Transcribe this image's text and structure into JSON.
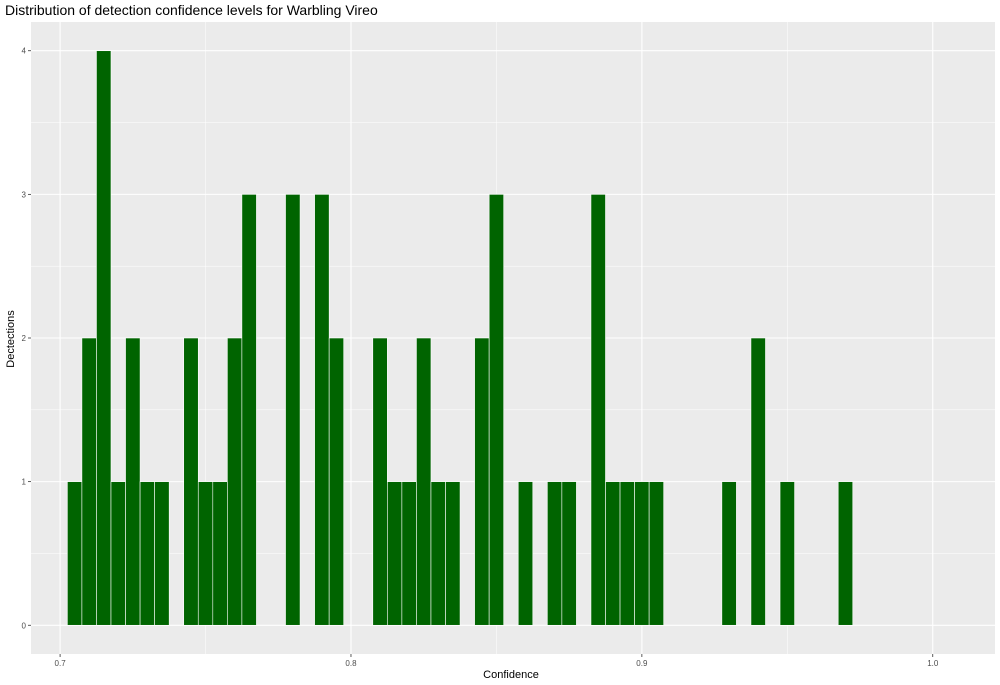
{
  "chart_data": {
    "type": "bar",
    "title": "Distribution of detection confidence levels for Warbling Vireo",
    "xlabel": "Confidence",
    "ylabel": "Dectections",
    "xlim": [
      0.69,
      1.0214
    ],
    "ylim": [
      -0.2,
      4.2
    ],
    "xticks": [
      0.7,
      0.8,
      0.9,
      1.0
    ],
    "xtick_labels": [
      "0.7",
      "0.8",
      "0.9",
      "1.0"
    ],
    "yticks": [
      0,
      1,
      2,
      3,
      4
    ],
    "ytick_labels": [
      "0",
      "1",
      "2",
      "3",
      "4"
    ],
    "bin_width": 0.005,
    "bar_color": "#006400",
    "bar_outline": "#ffffff",
    "panel_background": "#ebebeb",
    "grid": true,
    "x": [
      0.705,
      0.71,
      0.715,
      0.72,
      0.725,
      0.73,
      0.735,
      0.745,
      0.75,
      0.755,
      0.76,
      0.765,
      0.78,
      0.79,
      0.795,
      0.81,
      0.815,
      0.82,
      0.825,
      0.83,
      0.835,
      0.845,
      0.85,
      0.86,
      0.87,
      0.875,
      0.885,
      0.89,
      0.895,
      0.9,
      0.905,
      0.93,
      0.94,
      0.95,
      0.97
    ],
    "values": [
      1,
      2,
      4,
      1,
      2,
      1,
      1,
      2,
      1,
      1,
      2,
      3,
      3,
      3,
      2,
      2,
      1,
      1,
      2,
      1,
      1,
      2,
      3,
      1,
      1,
      1,
      3,
      1,
      1,
      1,
      1,
      1,
      2,
      1,
      1
    ]
  }
}
